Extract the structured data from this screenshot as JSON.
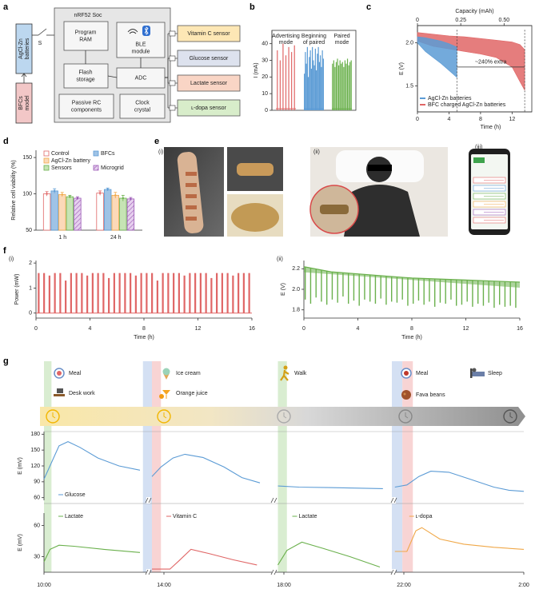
{
  "panel_a": {
    "label": "a",
    "battery": [
      "AgCl-Zn",
      "batteries"
    ],
    "switch": "S",
    "bfc": [
      "BFCs",
      "model"
    ],
    "soc": "nRF52 Soc",
    "program_ram": [
      "Program",
      "RAM"
    ],
    "ble": [
      "BLE",
      "module"
    ],
    "flash": [
      "Flash",
      "storage"
    ],
    "adc": "ADC",
    "passive": [
      "Passive RC",
      "components"
    ],
    "clock": [
      "Clock",
      "crystal"
    ],
    "sensors": [
      {
        "name": "Vitamin C sensor",
        "color": "#fde7b5"
      },
      {
        "name": "Glucose sensor",
        "color": "#dde2ee"
      },
      {
        "name": "Lactate sensor",
        "color": "#f9d5c5"
      },
      {
        "name": "ʟ-dopa sensor",
        "color": "#d8edca"
      }
    ]
  },
  "panel_b": {
    "label": "b",
    "chart": {
      "type": "trace",
      "ylabel": "I (mA)",
      "ylim": [
        0,
        48
      ],
      "yticks": [
        0,
        10,
        20,
        30,
        40
      ],
      "series": [
        {
          "name": [
            "Advertising",
            "mode"
          ],
          "color": "#e06666",
          "values": [
            36,
            30,
            40,
            33,
            38,
            35,
            39
          ]
        },
        {
          "name": [
            "Beginning",
            "of paired"
          ],
          "color": "#5b9bd5",
          "values": [
            22,
            35,
            28,
            38,
            20,
            32,
            36,
            25,
            38,
            30,
            27,
            37,
            24,
            34,
            38,
            29,
            33,
            26,
            36,
            31
          ]
        },
        {
          "name": [
            "Paired",
            "mode"
          ],
          "color": "#6ab04c",
          "values": [
            28,
            30,
            26,
            29,
            31,
            27,
            30,
            28,
            29,
            26,
            30,
            28,
            31,
            27,
            29,
            30
          ]
        }
      ]
    }
  },
  "panel_c": {
    "label": "c",
    "chart": {
      "type": "area",
      "xlabel": "Time (h)",
      "x2label": "Capacity (mAh)",
      "ylabel": "E (V)",
      "xlim": [
        0,
        14.5
      ],
      "xticks": [
        0,
        4,
        8,
        12
      ],
      "x2lim": [
        0,
        0.66
      ],
      "x2ticks": [
        0,
        0.25,
        {
          "value": 0.5,
          "label": "0.50"
        }
      ],
      "ylim": [
        1.2,
        2.2
      ],
      "yticks": [
        1.5,
        {
          "value": 2,
          "label": "2.0"
        }
      ],
      "annotation": "~240% extra",
      "annotation_range": [
        5,
        13.6
      ],
      "series": [
        {
          "name": "AgCl-Zn batteries",
          "color": "#5b9bd5",
          "x": [
            0,
            1,
            2,
            3,
            4,
            5
          ],
          "values": [
            2.07,
            2.06,
            2.04,
            2.02,
            1.99,
            1.95
          ],
          "low": [
            2.0,
            1.9,
            1.83,
            1.76,
            1.68,
            1.6
          ]
        },
        {
          "name": "BFC charged AgCl-Zn batteries",
          "color": "#e06666",
          "x": [
            0,
            2,
            4,
            6,
            8,
            10,
            12,
            13,
            13.6
          ],
          "values": [
            2.12,
            2.1,
            2.08,
            2.07,
            2.05,
            2.03,
            2.01,
            1.98,
            1.92
          ],
          "low": [
            2.02,
            1.96,
            1.93,
            1.9,
            1.87,
            1.83,
            1.72,
            1.55,
            1.45
          ]
        }
      ]
    }
  },
  "panel_d": {
    "label": "d",
    "chart": {
      "type": "bar",
      "ylabel": "Relative cell viability (%)",
      "categories": [
        "1 h",
        "24 h"
      ],
      "ylim": [
        50,
        160
      ],
      "yticks": [
        50,
        100,
        150
      ],
      "series": [
        {
          "name": "Control",
          "color": "#ffffff",
          "edge": "#e06666",
          "values": [
            100,
            101
          ],
          "errors": [
            3,
            3
          ]
        },
        {
          "name": "BFCs",
          "color": "#9fc3e6",
          "edge": "#5b9bd5",
          "values": [
            104,
            106
          ],
          "errors": [
            3,
            2
          ]
        },
        {
          "name": "AgCl-Zn battery",
          "color": "#fbd9b8",
          "edge": "#f0a848",
          "values": [
            99,
            98
          ],
          "errors": [
            3,
            4
          ]
        },
        {
          "name": "Sensors",
          "color": "#c6e4b4",
          "edge": "#6ab04c",
          "values": [
            96,
            94
          ],
          "errors": [
            2,
            4
          ]
        },
        {
          "name": "Microgrid",
          "color": "#e6d0ee",
          "edge": "#9b59b6",
          "hatch": true,
          "values": [
            94,
            93
          ],
          "errors": [
            2,
            2
          ]
        }
      ]
    }
  },
  "panel_e": {
    "label": "e",
    "sub": [
      "(i)",
      "(ii)",
      "(iii)"
    ]
  },
  "panel_f": {
    "label": "f",
    "charts": [
      {
        "type": "spikes",
        "sub": "(i)",
        "xlabel": "Time (h)",
        "ylabel": "Power (mW)",
        "color": "#e06666",
        "xlim": [
          0,
          16
        ],
        "xticks": [
          0,
          4,
          8,
          12,
          16
        ],
        "ylim": [
          -0.2,
          2.1
        ],
        "yticks": [
          0,
          1,
          2
        ],
        "x": [
          0.2,
          0.6,
          1,
          1.4,
          1.8,
          2.2,
          2.6,
          3,
          3.4,
          3.8,
          4.2,
          4.6,
          5,
          5.4,
          5.8,
          6.2,
          6.6,
          7,
          7.4,
          7.8,
          8.2,
          8.6,
          9,
          9.4,
          9.8,
          10.2,
          10.6,
          11,
          11.4,
          11.8,
          12.2,
          12.6,
          13,
          13.4,
          13.8,
          14.2,
          14.6,
          15,
          15.4,
          15.8
        ],
        "values": [
          1.6,
          1.6,
          1.5,
          1.6,
          1.6,
          1.3,
          1.6,
          1.6,
          1.6,
          1.5,
          1.6,
          1.6,
          1.6,
          1.4,
          1.6,
          1.6,
          1.6,
          1.6,
          1.5,
          1.6,
          1.6,
          1.6,
          1.3,
          1.6,
          1.6,
          1.6,
          1.6,
          1.5,
          1.6,
          1.6,
          1.6,
          1.6,
          1.4,
          1.6,
          1.6,
          1.6,
          1.5,
          1.6,
          1.6,
          1.6
        ]
      },
      {
        "type": "envelope",
        "sub": "(ii)",
        "xlabel": "Time (h)",
        "ylabel": "E (V)",
        "color": "#6ab04c",
        "xlim": [
          0,
          16
        ],
        "xticks": [
          0,
          4,
          8,
          12,
          16
        ],
        "ylim": [
          1.72,
          2.28
        ],
        "yticks": [
          1.8,
          {
            "value": 2,
            "label": "2.0"
          },
          2.2
        ],
        "x": [
          0,
          2,
          4,
          6,
          8,
          10,
          12,
          14,
          16
        ],
        "values": [
          2.22,
          2.17,
          2.15,
          2.13,
          2.11,
          2.1,
          2.09,
          2.08,
          2.07
        ],
        "dip_x": [
          0.1,
          0.5,
          0.9,
          1.3,
          1.7,
          2.1,
          2.5,
          2.9,
          3.3,
          3.7,
          4.1,
          4.5,
          4.9,
          5.3,
          5.7,
          6.1,
          6.5,
          6.9,
          7.3,
          7.7,
          8.1,
          8.5,
          8.9,
          9.3,
          9.7,
          10.1,
          10.5,
          10.9,
          11.3,
          11.7,
          12.1,
          12.5,
          12.9,
          13.3,
          13.7,
          14.1,
          14.5,
          14.9,
          15.3,
          15.7
        ],
        "dips": [
          1.9,
          1.86,
          1.92,
          1.88,
          1.85,
          1.9,
          1.87,
          1.93,
          1.86,
          1.89,
          1.84,
          1.9,
          1.88,
          1.86,
          1.91,
          1.85,
          1.88,
          1.87,
          1.9,
          1.84,
          1.86,
          1.89,
          1.85,
          1.88,
          1.83,
          1.87,
          1.86,
          1.9,
          1.84,
          1.85,
          1.88,
          1.83,
          1.86,
          1.84,
          1.87,
          1.82,
          1.85,
          1.83,
          1.84,
          1.82
        ]
      }
    ]
  },
  "panel_g": {
    "label": "g",
    "events": [
      "Meal",
      "Desk work",
      "Ice cream",
      "Orange juice",
      "Walk",
      "Meal",
      "Fava beans",
      "Sleep"
    ],
    "xlim": [
      10,
      26
    ],
    "xticks": [
      {
        "value": 10,
        "label": "10:00"
      },
      {
        "value": 14,
        "label": "14:00"
      },
      {
        "value": 18,
        "label": "18:00"
      },
      {
        "value": 22,
        "label": "22:00"
      },
      {
        "value": 26,
        "label": "2:00"
      }
    ],
    "bands": [
      {
        "start": 10,
        "end": 10.25,
        "color": "#cfe8c6"
      },
      {
        "start": 13.3,
        "end": 13.6,
        "color": "#c9d8f0"
      },
      {
        "start": 13.6,
        "end": 13.9,
        "color": "#f6c9c9"
      },
      {
        "start": 17.8,
        "end": 18.1,
        "color": "#cfe8c6"
      },
      {
        "start": 21.6,
        "end": 21.95,
        "color": "#c9d8f0"
      },
      {
        "start": 21.95,
        "end": 22.3,
        "color": "#f6c9c9"
      }
    ],
    "charts": [
      {
        "type": "line",
        "ylabel": "E (mV)",
        "ylim": [
          55,
          185
        ],
        "yticks": [
          60,
          90,
          120,
          150,
          180
        ],
        "series": [
          {
            "name": "Glucose",
            "color": "#5b9bd5",
            "x": [
              10,
              10.2,
              10.5,
              10.8,
              11.2,
              11.8,
              12.5,
              13.2,
              null,
              13.6,
              13.9,
              14.3,
              14.7,
              15.3,
              16,
              16.6,
              17.2,
              null,
              17.8,
              18.5,
              19.5,
              20.5,
              21.3,
              null,
              21.7,
              22.1,
              22.5,
              22.9,
              23.5,
              24.2,
              25,
              25.5,
              26
            ],
            "values": [
              95,
              120,
              158,
              166,
              155,
              135,
              120,
              112,
              null,
              100,
              118,
              135,
              142,
              136,
              118,
              98,
              88,
              null,
              82,
              80,
              79,
              78,
              77,
              null,
              80,
              84,
              100,
              110,
              108,
              95,
              80,
              74,
              72
            ]
          }
        ]
      },
      {
        "type": "line",
        "ylabel": "E (mV)",
        "ylim": [
          15,
          72
        ],
        "yticks": [
          30,
          60
        ],
        "series": [
          {
            "name": "Lactate",
            "color": "#6ab04c",
            "x": [
              10,
              10.2,
              10.5,
              11,
              12,
              13.2
            ],
            "values": [
              25,
              37,
              41,
              40,
              37,
              34
            ]
          },
          {
            "name": "Vitamin C",
            "color": "#e06666",
            "x": [
              13.6,
              14.2,
              14.5,
              14.9,
              15.5,
              16.3,
              17.1
            ],
            "values": [
              18,
              18,
              26,
              37,
              33,
              27,
              22
            ]
          },
          {
            "name": "Lactate",
            "color": "#6ab04c",
            "x": [
              17.8,
              18.1,
              18.6,
              19.3,
              20.2,
              21.2
            ],
            "values": [
              22,
              36,
              44,
              38,
              30,
              20
            ]
          },
          {
            "name": "ʟ-dopa",
            "color": "#f0a848",
            "x": [
              21.7,
              22.1,
              22.4,
              22.6,
              23.2,
              24,
              25,
              26
            ],
            "values": [
              35,
              35,
              55,
              58,
              47,
              42,
              39,
              37
            ]
          }
        ]
      }
    ]
  }
}
